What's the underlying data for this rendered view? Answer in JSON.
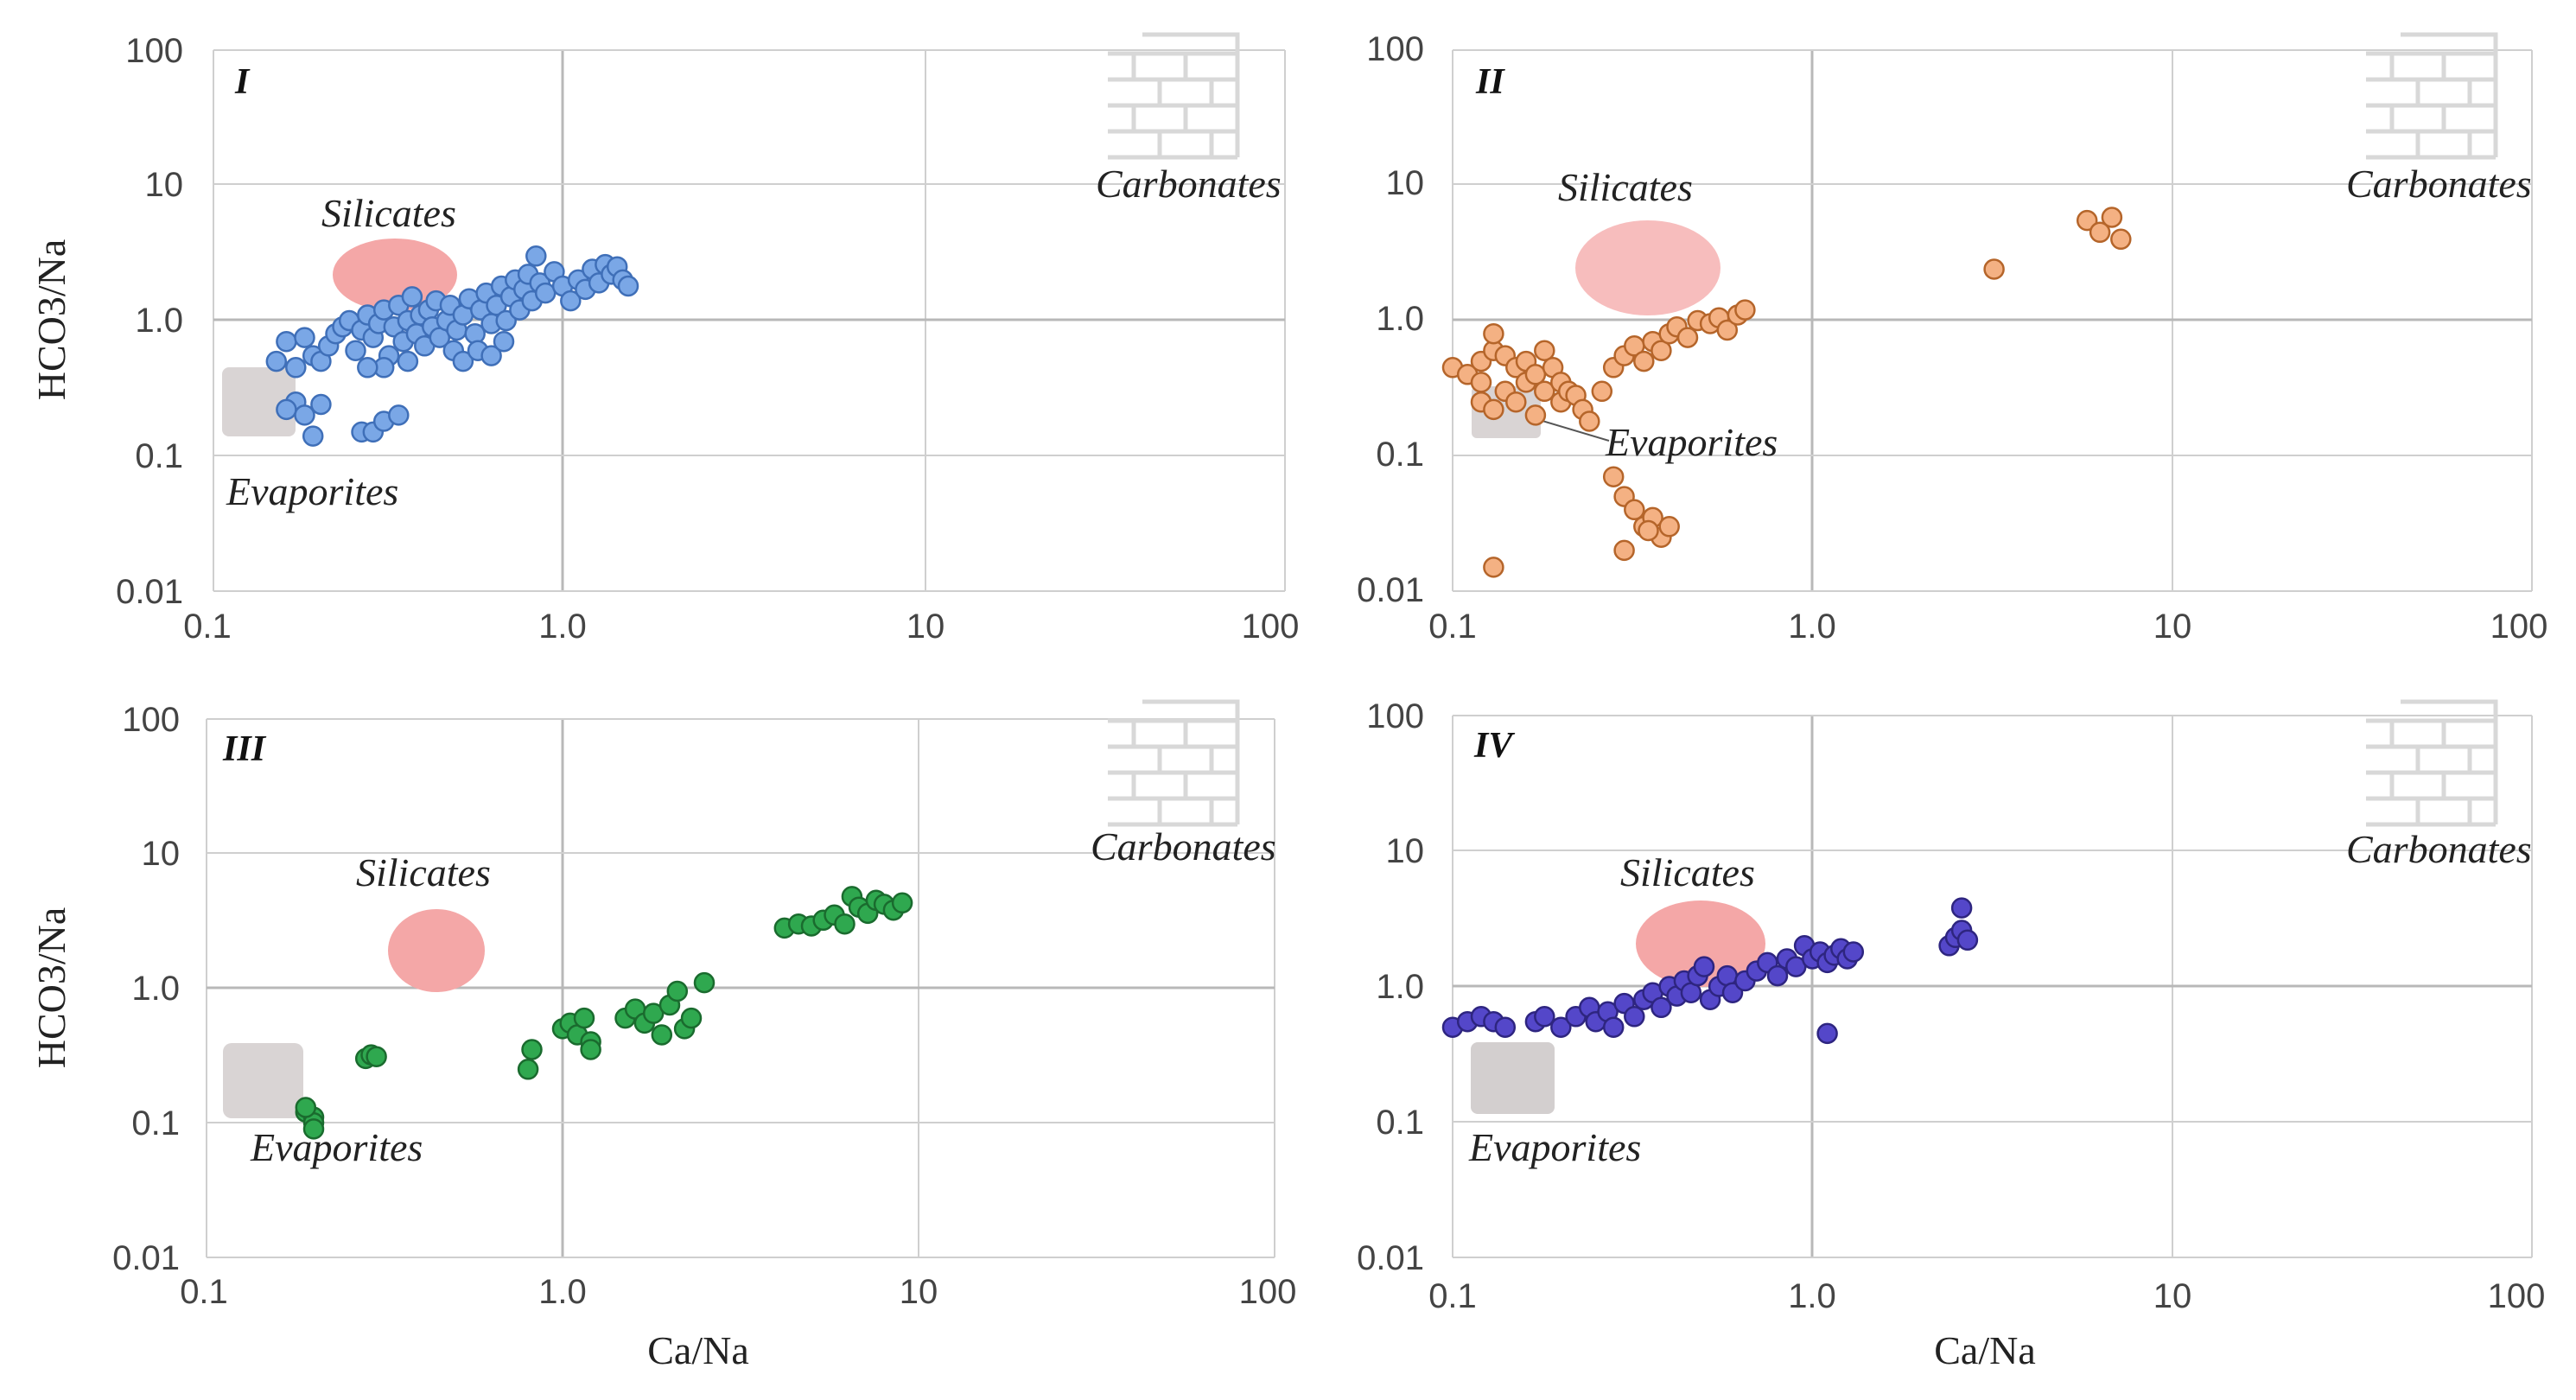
{
  "colors": {
    "silicates_fill": "#f4a7a7",
    "evaporites_fill": "#d9d4d4",
    "carbonates_brick": "#d8d8d8",
    "grid": "#cfcfcf"
  },
  "icons": {
    "carbonates": "brick-wall-icon"
  },
  "chart_data": [
    {
      "type": "scatter",
      "panel": "I",
      "xscale": "log",
      "yscale": "log",
      "xlim": [
        0.1,
        100
      ],
      "ylim": [
        0.01,
        100
      ],
      "x_ticks": [
        "0.1",
        "1.0",
        "10",
        "100"
      ],
      "y_ticks": [
        "0.01",
        "0.1",
        "1.0",
        "10",
        "100"
      ],
      "xlabel": "",
      "ylabel": "HCO3/Na",
      "marker_fill": "#7aa7e6",
      "marker_edge": "#3f6fb8",
      "regions": {
        "silicates": "Silicates",
        "evaporites": "Evaporites",
        "carbonates": "Carbonates"
      },
      "silicates": {
        "x": [
          0.25,
          0.48
        ],
        "y": [
          1.4,
          4.5
        ]
      },
      "evaporites": {
        "x": [
          0.12,
          0.18
        ],
        "y": [
          0.12,
          0.36
        ]
      },
      "points": [
        [
          0.15,
          0.5
        ],
        [
          0.16,
          0.7
        ],
        [
          0.17,
          0.45
        ],
        [
          0.18,
          0.75
        ],
        [
          0.19,
          0.55
        ],
        [
          0.2,
          0.5
        ],
        [
          0.21,
          0.65
        ],
        [
          0.22,
          0.8
        ],
        [
          0.23,
          0.9
        ],
        [
          0.24,
          1.0
        ],
        [
          0.25,
          0.6
        ],
        [
          0.26,
          0.85
        ],
        [
          0.27,
          1.1
        ],
        [
          0.28,
          0.75
        ],
        [
          0.29,
          0.95
        ],
        [
          0.3,
          1.2
        ],
        [
          0.31,
          0.55
        ],
        [
          0.32,
          0.9
        ],
        [
          0.33,
          1.3
        ],
        [
          0.34,
          0.7
        ],
        [
          0.35,
          1.0
        ],
        [
          0.36,
          1.5
        ],
        [
          0.37,
          0.8
        ],
        [
          0.38,
          1.1
        ],
        [
          0.39,
          0.65
        ],
        [
          0.4,
          1.2
        ],
        [
          0.41,
          0.9
        ],
        [
          0.42,
          1.4
        ],
        [
          0.43,
          0.75
        ],
        [
          0.45,
          1.0
        ],
        [
          0.46,
          1.3
        ],
        [
          0.47,
          0.6
        ],
        [
          0.48,
          0.85
        ],
        [
          0.5,
          1.1
        ],
        [
          0.52,
          1.45
        ],
        [
          0.54,
          0.8
        ],
        [
          0.56,
          1.2
        ],
        [
          0.58,
          1.6
        ],
        [
          0.6,
          0.95
        ],
        [
          0.62,
          1.3
        ],
        [
          0.64,
          1.8
        ],
        [
          0.66,
          1.0
        ],
        [
          0.68,
          1.5
        ],
        [
          0.7,
          2.0
        ],
        [
          0.72,
          1.2
        ],
        [
          0.74,
          1.7
        ],
        [
          0.76,
          2.2
        ],
        [
          0.78,
          1.4
        ],
        [
          0.8,
          3.0
        ],
        [
          0.82,
          1.9
        ],
        [
          0.85,
          1.6
        ],
        [
          0.9,
          2.3
        ],
        [
          0.95,
          1.8
        ],
        [
          1.0,
          1.4
        ],
        [
          1.05,
          2.0
        ],
        [
          1.1,
          1.7
        ],
        [
          1.15,
          2.4
        ],
        [
          1.2,
          1.9
        ],
        [
          1.25,
          2.6
        ],
        [
          1.3,
          2.2
        ],
        [
          1.35,
          2.5
        ],
        [
          1.4,
          2.0
        ],
        [
          1.45,
          1.8
        ],
        [
          0.5,
          0.5
        ],
        [
          0.55,
          0.6
        ],
        [
          0.6,
          0.55
        ],
        [
          0.65,
          0.7
        ],
        [
          0.3,
          0.45
        ],
        [
          0.35,
          0.5
        ],
        [
          0.27,
          0.45
        ],
        [
          0.17,
          0.25
        ],
        [
          0.18,
          0.2
        ],
        [
          0.2,
          0.24
        ],
        [
          0.16,
          0.22
        ],
        [
          0.19,
          0.14
        ],
        [
          0.26,
          0.15
        ],
        [
          0.28,
          0.15
        ],
        [
          0.3,
          0.18
        ],
        [
          0.33,
          0.2
        ]
      ]
    },
    {
      "type": "scatter",
      "panel": "II",
      "xscale": "log",
      "yscale": "log",
      "xlim": [
        0.1,
        100
      ],
      "ylim": [
        0.01,
        100
      ],
      "x_ticks": [
        "0.1",
        "1.0",
        "10",
        "100"
      ],
      "y_ticks": [
        "0.01",
        "0.1",
        "1.0",
        "10",
        "100"
      ],
      "xlabel": "",
      "ylabel": "",
      "marker_fill": "#f4b183",
      "marker_edge": "#b5652a",
      "regions": {
        "silicates": "Silicates",
        "evaporites": "Evaporites",
        "carbonates": "Carbonates"
      },
      "silicates": {
        "x": [
          0.25,
          0.55
        ],
        "y": [
          1.1,
          5.0
        ]
      },
      "evaporites": {
        "x": [
          0.12,
          0.17
        ],
        "y": [
          0.13,
          0.28
        ]
      },
      "points": [
        [
          0.1,
          0.45
        ],
        [
          0.11,
          0.4
        ],
        [
          0.12,
          0.5
        ],
        [
          0.12,
          0.35
        ],
        [
          0.13,
          0.6
        ],
        [
          0.13,
          0.8
        ],
        [
          0.14,
          0.55
        ],
        [
          0.14,
          0.3
        ],
        [
          0.15,
          0.45
        ],
        [
          0.15,
          0.25
        ],
        [
          0.16,
          0.35
        ],
        [
          0.16,
          0.5
        ],
        [
          0.17,
          0.4
        ],
        [
          0.17,
          0.2
        ],
        [
          0.18,
          0.6
        ],
        [
          0.18,
          0.3
        ],
        [
          0.19,
          0.45
        ],
        [
          0.2,
          0.35
        ],
        [
          0.2,
          0.25
        ],
        [
          0.21,
          0.3
        ],
        [
          0.22,
          0.28
        ],
        [
          0.23,
          0.22
        ],
        [
          0.24,
          0.18
        ],
        [
          0.12,
          0.25
        ],
        [
          0.13,
          0.22
        ],
        [
          0.26,
          0.3
        ],
        [
          0.28,
          0.45
        ],
        [
          0.3,
          0.55
        ],
        [
          0.32,
          0.65
        ],
        [
          0.34,
          0.5
        ],
        [
          0.36,
          0.7
        ],
        [
          0.38,
          0.6
        ],
        [
          0.4,
          0.8
        ],
        [
          0.42,
          0.9
        ],
        [
          0.45,
          0.75
        ],
        [
          0.48,
          1.0
        ],
        [
          0.52,
          0.95
        ],
        [
          0.55,
          1.05
        ],
        [
          0.58,
          0.85
        ],
        [
          0.62,
          1.1
        ],
        [
          0.65,
          1.2
        ],
        [
          0.28,
          0.07
        ],
        [
          0.3,
          0.05
        ],
        [
          0.32,
          0.04
        ],
        [
          0.34,
          0.03
        ],
        [
          0.36,
          0.035
        ],
        [
          0.38,
          0.025
        ],
        [
          0.4,
          0.03
        ],
        [
          0.3,
          0.02
        ],
        [
          0.35,
          0.028
        ],
        [
          0.13,
          0.015
        ],
        [
          3.2,
          2.4
        ],
        [
          5.8,
          5.5
        ],
        [
          6.3,
          4.5
        ],
        [
          6.8,
          5.8
        ],
        [
          7.2,
          4.0
        ]
      ]
    },
    {
      "type": "scatter",
      "panel": "III",
      "xscale": "log",
      "yscale": "log",
      "xlim": [
        0.1,
        100
      ],
      "ylim": [
        0.01,
        100
      ],
      "x_ticks": [
        "0.1",
        "1.0",
        "10",
        "100"
      ],
      "y_ticks": [
        "0.01",
        "0.1",
        "1.0",
        "10",
        "100"
      ],
      "xlabel": "Ca/Na",
      "ylabel": "HCO3/Na",
      "marker_fill": "#2fa84f",
      "marker_edge": "#1a6b2e",
      "regions": {
        "silicates": "Silicates",
        "evaporites": "Evaporites",
        "carbonates": "Carbonates"
      },
      "silicates": {
        "x": [
          0.3,
          0.6
        ],
        "y": [
          1.2,
          4.5
        ]
      },
      "evaporites": {
        "x": [
          0.12,
          0.18
        ],
        "y": [
          0.1,
          0.3
        ]
      },
      "points": [
        [
          0.19,
          0.12
        ],
        [
          0.2,
          0.11
        ],
        [
          0.2,
          0.1
        ],
        [
          0.19,
          0.13
        ],
        [
          0.2,
          0.09
        ],
        [
          0.28,
          0.3
        ],
        [
          0.29,
          0.32
        ],
        [
          0.3,
          0.31
        ],
        [
          0.8,
          0.25
        ],
        [
          0.82,
          0.35
        ],
        [
          1.0,
          0.5
        ],
        [
          1.05,
          0.55
        ],
        [
          1.1,
          0.45
        ],
        [
          1.15,
          0.6
        ],
        [
          1.2,
          0.4
        ],
        [
          1.2,
          0.35
        ],
        [
          1.5,
          0.6
        ],
        [
          1.6,
          0.7
        ],
        [
          1.7,
          0.55
        ],
        [
          1.8,
          0.65
        ],
        [
          1.9,
          0.45
        ],
        [
          2.0,
          0.75
        ],
        [
          2.1,
          0.95
        ],
        [
          2.2,
          0.5
        ],
        [
          2.3,
          0.6
        ],
        [
          2.5,
          1.1
        ],
        [
          4.2,
          2.8
        ],
        [
          4.6,
          3.0
        ],
        [
          5.0,
          2.9
        ],
        [
          5.4,
          3.2
        ],
        [
          5.8,
          3.5
        ],
        [
          6.2,
          3.0
        ],
        [
          6.5,
          4.8
        ],
        [
          6.8,
          4.0
        ],
        [
          7.2,
          3.6
        ],
        [
          7.6,
          4.5
        ],
        [
          8.0,
          4.2
        ],
        [
          8.5,
          3.8
        ],
        [
          9.0,
          4.3
        ]
      ]
    },
    {
      "type": "scatter",
      "panel": "IV",
      "xscale": "log",
      "yscale": "log",
      "xlim": [
        0.1,
        100
      ],
      "ylim": [
        0.01,
        100
      ],
      "x_ticks": [
        "0.1",
        "1.0",
        "10",
        "100"
      ],
      "y_ticks": [
        "0.01",
        "0.1",
        "1.0",
        "10",
        "100"
      ],
      "xlabel": "Ca/Na",
      "ylabel": "",
      "marker_fill": "#5447c9",
      "marker_edge": "#2e2580",
      "regions": {
        "silicates": "Silicates",
        "evaporites": "Evaporites",
        "carbonates": "Carbonates"
      },
      "silicates": {
        "x": [
          0.35,
          0.72
        ],
        "y": [
          1.0,
          4.5
        ]
      },
      "evaporites": {
        "x": [
          0.12,
          0.19
        ],
        "y": [
          0.1,
          0.3
        ]
      },
      "points": [
        [
          0.1,
          0.5
        ],
        [
          0.11,
          0.55
        ],
        [
          0.12,
          0.6
        ],
        [
          0.13,
          0.55
        ],
        [
          0.14,
          0.5
        ],
        [
          0.17,
          0.55
        ],
        [
          0.18,
          0.6
        ],
        [
          0.2,
          0.5
        ],
        [
          0.22,
          0.6
        ],
        [
          0.24,
          0.7
        ],
        [
          0.25,
          0.55
        ],
        [
          0.27,
          0.65
        ],
        [
          0.28,
          0.5
        ],
        [
          0.3,
          0.75
        ],
        [
          0.32,
          0.6
        ],
        [
          0.34,
          0.8
        ],
        [
          0.36,
          0.9
        ],
        [
          0.38,
          0.7
        ],
        [
          0.4,
          1.0
        ],
        [
          0.42,
          0.85
        ],
        [
          0.44,
          1.1
        ],
        [
          0.46,
          0.9
        ],
        [
          0.48,
          1.2
        ],
        [
          0.5,
          1.4
        ],
        [
          0.52,
          0.8
        ],
        [
          0.55,
          1.0
        ],
        [
          0.58,
          1.2
        ],
        [
          0.6,
          0.9
        ],
        [
          0.65,
          1.1
        ],
        [
          0.7,
          1.3
        ],
        [
          0.75,
          1.5
        ],
        [
          0.8,
          1.2
        ],
        [
          0.85,
          1.6
        ],
        [
          0.9,
          1.4
        ],
        [
          0.95,
          2.0
        ],
        [
          1.0,
          1.6
        ],
        [
          1.05,
          1.8
        ],
        [
          1.1,
          1.5
        ],
        [
          1.15,
          1.7
        ],
        [
          1.2,
          1.9
        ],
        [
          1.25,
          1.6
        ],
        [
          1.3,
          1.8
        ],
        [
          1.1,
          0.45
        ],
        [
          2.4,
          2.0
        ],
        [
          2.5,
          2.3
        ],
        [
          2.6,
          2.6
        ],
        [
          2.7,
          2.2
        ],
        [
          2.6,
          3.8
        ]
      ]
    }
  ],
  "panels": [
    {
      "id": "I",
      "ylabel": "HCO3/Na",
      "xlabel": "",
      "y_ticks": [
        "100",
        "10",
        "1.0",
        "0.1",
        "0.01"
      ],
      "x_ticks": [
        "0.1",
        "1.0",
        "10",
        "100"
      ],
      "silicates": "Silicates",
      "evaporites": "Evaporites",
      "carbonates": "Carbonates"
    },
    {
      "id": "II",
      "ylabel": "",
      "xlabel": "",
      "y_ticks": [
        "100",
        "10",
        "1.0",
        "0.1",
        "0.01"
      ],
      "x_ticks": [
        "0.1",
        "1.0",
        "10",
        "100"
      ],
      "silicates": "Silicates",
      "evaporites": "Evaporites",
      "carbonates": "Carbonates"
    },
    {
      "id": "III",
      "ylabel": "HCO3/Na",
      "xlabel": "Ca/Na",
      "y_ticks": [
        "100",
        "10",
        "1.0",
        "0.1",
        "0.01"
      ],
      "x_ticks": [
        "0.1",
        "1.0",
        "10",
        "100"
      ],
      "silicates": "Silicates",
      "evaporites": "Evaporites",
      "carbonates": "Carbonates"
    },
    {
      "id": "IV",
      "ylabel": "",
      "xlabel": "Ca/Na",
      "y_ticks": [
        "100",
        "10",
        "1.0",
        "0.1",
        "0.01"
      ],
      "x_ticks": [
        "0.1",
        "1.0",
        "10",
        "100"
      ],
      "silicates": "Silicates",
      "evaporites": "Evaporites",
      "carbonates": "Carbonates"
    }
  ]
}
